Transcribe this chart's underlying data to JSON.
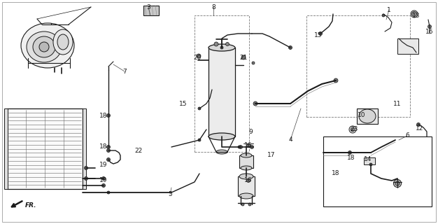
{
  "bg_color": "#ffffff",
  "line_color": "#1a1a1a",
  "gray_light": "#d8d8d8",
  "gray_mid": "#b0b0b0",
  "gray_dark": "#888888",
  "border_gray": "#999999",
  "dashed_gray": "#666666",
  "labels": [
    [
      "1",
      556,
      14
    ],
    [
      "3",
      212,
      10
    ],
    [
      "4",
      415,
      200
    ],
    [
      "5",
      243,
      278
    ],
    [
      "6",
      582,
      194
    ],
    [
      "7",
      178,
      102
    ],
    [
      "8",
      305,
      10
    ],
    [
      "9",
      358,
      188
    ],
    [
      "10",
      517,
      164
    ],
    [
      "11",
      568,
      148
    ],
    [
      "12",
      600,
      183
    ],
    [
      "13",
      595,
      22
    ],
    [
      "14",
      526,
      228
    ],
    [
      "15",
      262,
      148
    ],
    [
      "15",
      455,
      50
    ],
    [
      "16",
      614,
      45
    ],
    [
      "16",
      355,
      208
    ],
    [
      "16",
      355,
      258
    ],
    [
      "17",
      388,
      222
    ],
    [
      "18",
      148,
      165
    ],
    [
      "18",
      148,
      210
    ],
    [
      "18",
      502,
      226
    ],
    [
      "18",
      480,
      248
    ],
    [
      "19",
      148,
      235
    ],
    [
      "19",
      148,
      258
    ],
    [
      "20",
      282,
      82
    ],
    [
      "21",
      348,
      82
    ],
    [
      "22",
      198,
      215
    ],
    [
      "23",
      506,
      184
    ]
  ]
}
